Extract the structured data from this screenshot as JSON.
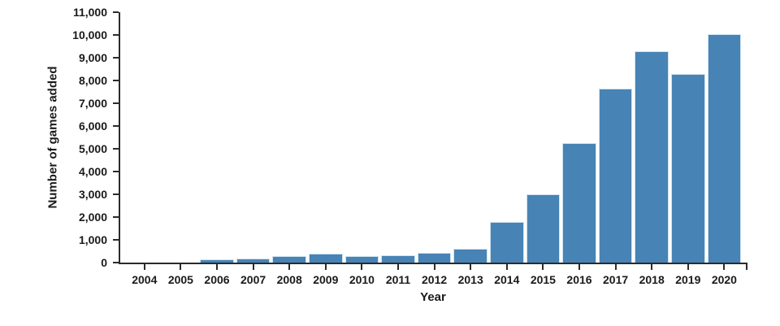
{
  "chart_data": {
    "type": "bar",
    "title": "",
    "xlabel": "Year",
    "ylabel": "Number of games added",
    "categories": [
      "2004",
      "2005",
      "2006",
      "2007",
      "2008",
      "2009",
      "2010",
      "2011",
      "2012",
      "2013",
      "2014",
      "2015",
      "2016",
      "2017",
      "2018",
      "2019",
      "2020"
    ],
    "values": [
      0,
      0,
      130,
      190,
      280,
      410,
      300,
      310,
      430,
      600,
      1800,
      3000,
      5250,
      7650,
      9300,
      8300,
      10050
    ],
    "ylim": [
      0,
      11000
    ],
    "ytick_step": 1000,
    "ytick_labels": [
      "0",
      "1,000",
      "2,000",
      "3,000",
      "4,000",
      "5,000",
      "6,000",
      "7,000",
      "8,000",
      "9,000",
      "10,000",
      "11,000"
    ],
    "legend": "none",
    "grid": false,
    "colors": {
      "bar_fill": "#4783b5",
      "bar_stroke": "#cfe3f2",
      "axis": "#2b2b2b",
      "text": "#1a1a1a",
      "background": "#ffffff"
    }
  }
}
